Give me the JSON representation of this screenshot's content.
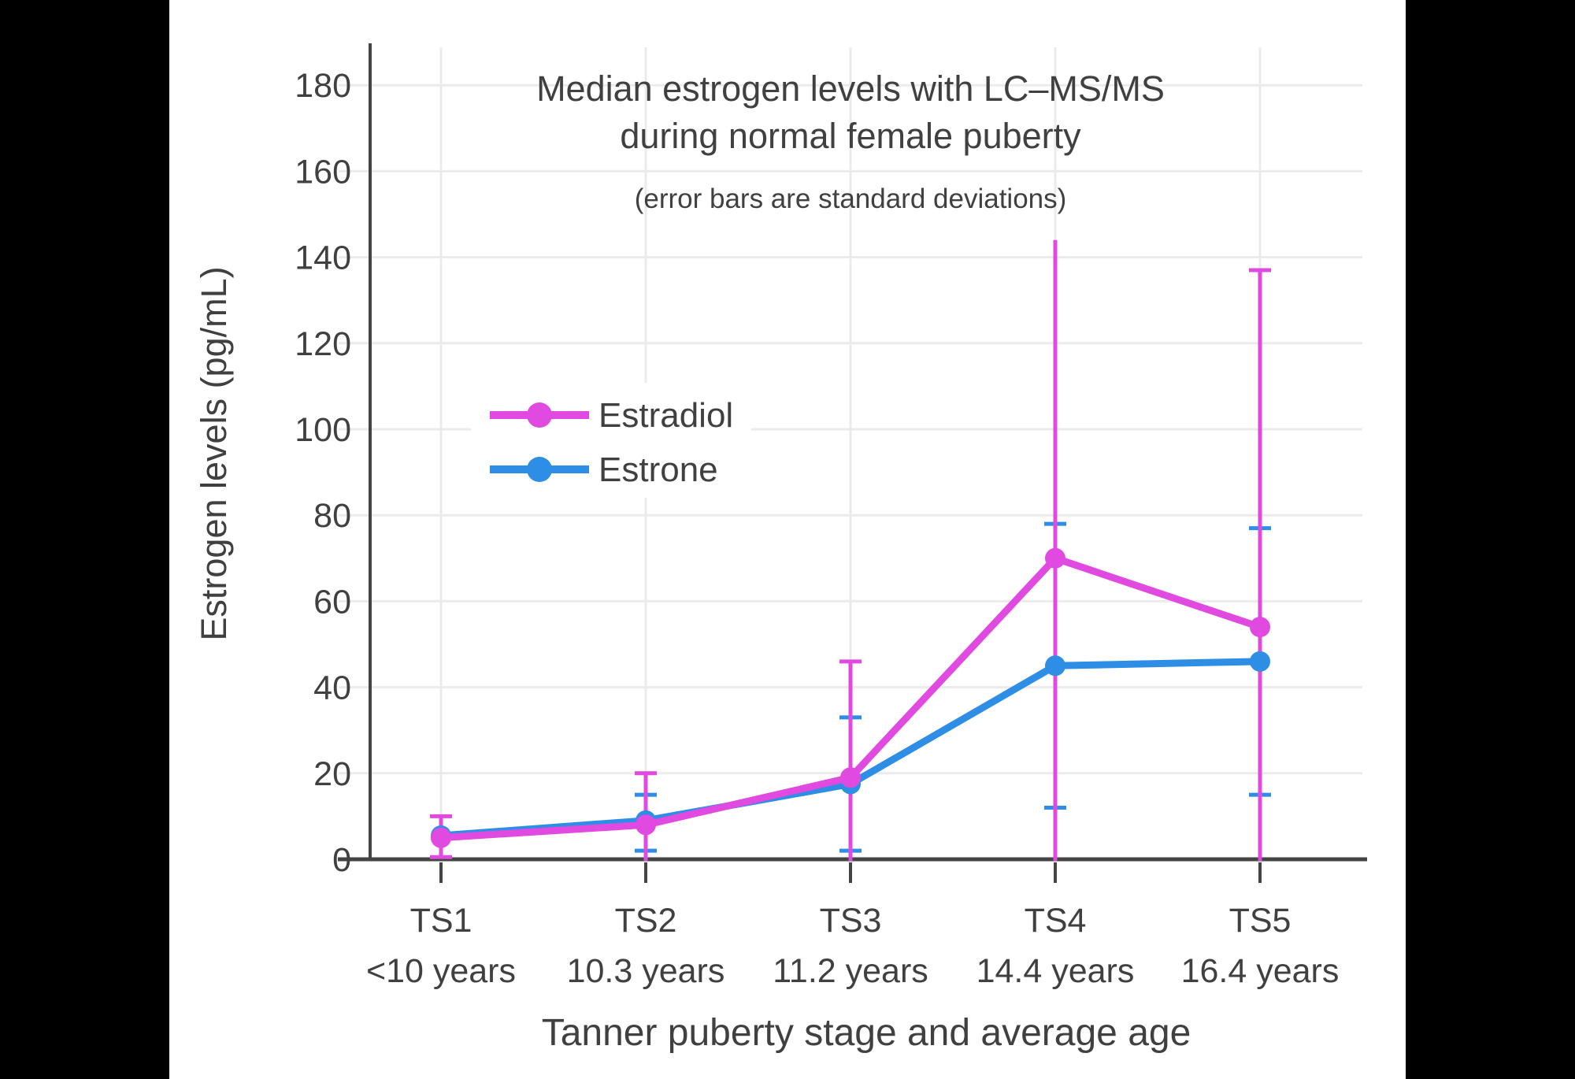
{
  "page": {
    "background": "#000000",
    "canvas_color": "#ffffff",
    "text_color": "#404040",
    "axis_color": "#444444",
    "grid_color": "#ebebeb"
  },
  "chart_data": {
    "type": "line",
    "title_lines": [
      "Median estrogen levels with LC–MS/MS",
      "during normal female puberty"
    ],
    "subtitle": "(error bars are standard deviations)",
    "xlabel": "Tanner puberty stage and average age",
    "ylabel": "Estrogen levels (pg/mL)",
    "categories": [
      "TS1",
      "TS2",
      "TS3",
      "TS4",
      "TS5"
    ],
    "category_ages": [
      "<10 years",
      "10.3 years",
      "11.2 years",
      "14.4 years",
      "16.4 years"
    ],
    "yticks": [
      0,
      20,
      40,
      60,
      80,
      100,
      120,
      140,
      160,
      180
    ],
    "ylim": [
      0,
      190
    ],
    "grid": true,
    "legend_position": "inside-top-left",
    "series": [
      {
        "name": "Estradiol",
        "color": "#E04AE0",
        "values": [
          5,
          8,
          19,
          70,
          54
        ],
        "err_top": [
          10,
          20,
          46,
          144,
          137
        ],
        "err_top_cap": [
          true,
          true,
          true,
          false,
          true
        ],
        "err_bottom": [
          0.5,
          null,
          null,
          null,
          null
        ]
      },
      {
        "name": "Estrone",
        "color": "#2E8EE6",
        "values": [
          5.5,
          9,
          17.5,
          45,
          46
        ],
        "err_top": [
          null,
          15,
          33,
          78,
          77
        ],
        "err_top_cap": [
          false,
          true,
          true,
          true,
          true
        ],
        "err_bottom": [
          null,
          2,
          2,
          12,
          15
        ]
      }
    ]
  }
}
